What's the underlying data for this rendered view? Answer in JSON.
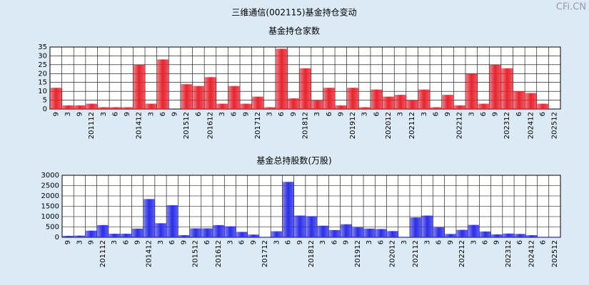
{
  "title": "三维通信(002115)基金持仓变动",
  "watermark": "CFi.CN",
  "chart_data": [
    {
      "type": "bar",
      "title": "基金持仓家数",
      "color": "#e8242e",
      "categories": [
        "9",
        "3",
        "9",
        "201112",
        "3",
        "6",
        "9",
        "201412",
        "3",
        "6",
        "9",
        "201512",
        "6",
        "201612",
        "3",
        "6",
        "9",
        "201712",
        "3",
        "6",
        "9",
        "201812",
        "3",
        "6",
        "9",
        "201912",
        "3",
        "6",
        "202012",
        "3",
        "202112",
        "3",
        "6",
        "9",
        "202212",
        "3",
        "6",
        "9",
        "202312",
        "6",
        "202412",
        "6",
        "202512"
      ],
      "values": [
        12,
        2,
        2,
        3,
        1,
        1,
        1,
        25,
        3,
        28,
        0,
        14,
        13,
        18,
        3,
        13,
        3,
        7,
        1,
        34,
        6,
        23,
        5,
        12,
        2,
        12,
        1,
        11,
        7,
        8,
        5,
        11,
        1,
        8,
        2,
        20,
        3,
        25,
        23,
        10,
        9,
        3,
        0
      ],
      "ylim": [
        0,
        35
      ],
      "yticks": [
        0,
        5,
        10,
        15,
        20,
        25,
        30,
        35
      ],
      "grid": true
    },
    {
      "type": "bar",
      "title": "基金总持股数(万股)",
      "color": "#2a2ee8",
      "categories": [
        "9",
        "3",
        "9",
        "201112",
        "3",
        "6",
        "9",
        "201412",
        "3",
        "6",
        "9",
        "201512",
        "6",
        "201612",
        "3",
        "6",
        "9",
        "201712",
        "3",
        "6",
        "9",
        "201812",
        "3",
        "6",
        "9",
        "201912",
        "3",
        "6",
        "202012",
        "3",
        "202112",
        "3",
        "6",
        "9",
        "202212",
        "3",
        "6",
        "9",
        "202312",
        "6",
        "202412",
        "6",
        "202512"
      ],
      "values": [
        70,
        80,
        320,
        590,
        170,
        170,
        420,
        1850,
        680,
        1550,
        100,
        430,
        430,
        590,
        530,
        260,
        130,
        10,
        290,
        2680,
        1050,
        1020,
        560,
        350,
        630,
        480,
        420,
        400,
        300,
        20,
        960,
        1050,
        480,
        160,
        360,
        600,
        280,
        140,
        180,
        160,
        100,
        20,
        20
      ],
      "ylim": [
        0,
        3000
      ],
      "yticks": [
        0,
        500,
        1000,
        1500,
        2000,
        2500,
        3000
      ],
      "grid": true
    }
  ]
}
